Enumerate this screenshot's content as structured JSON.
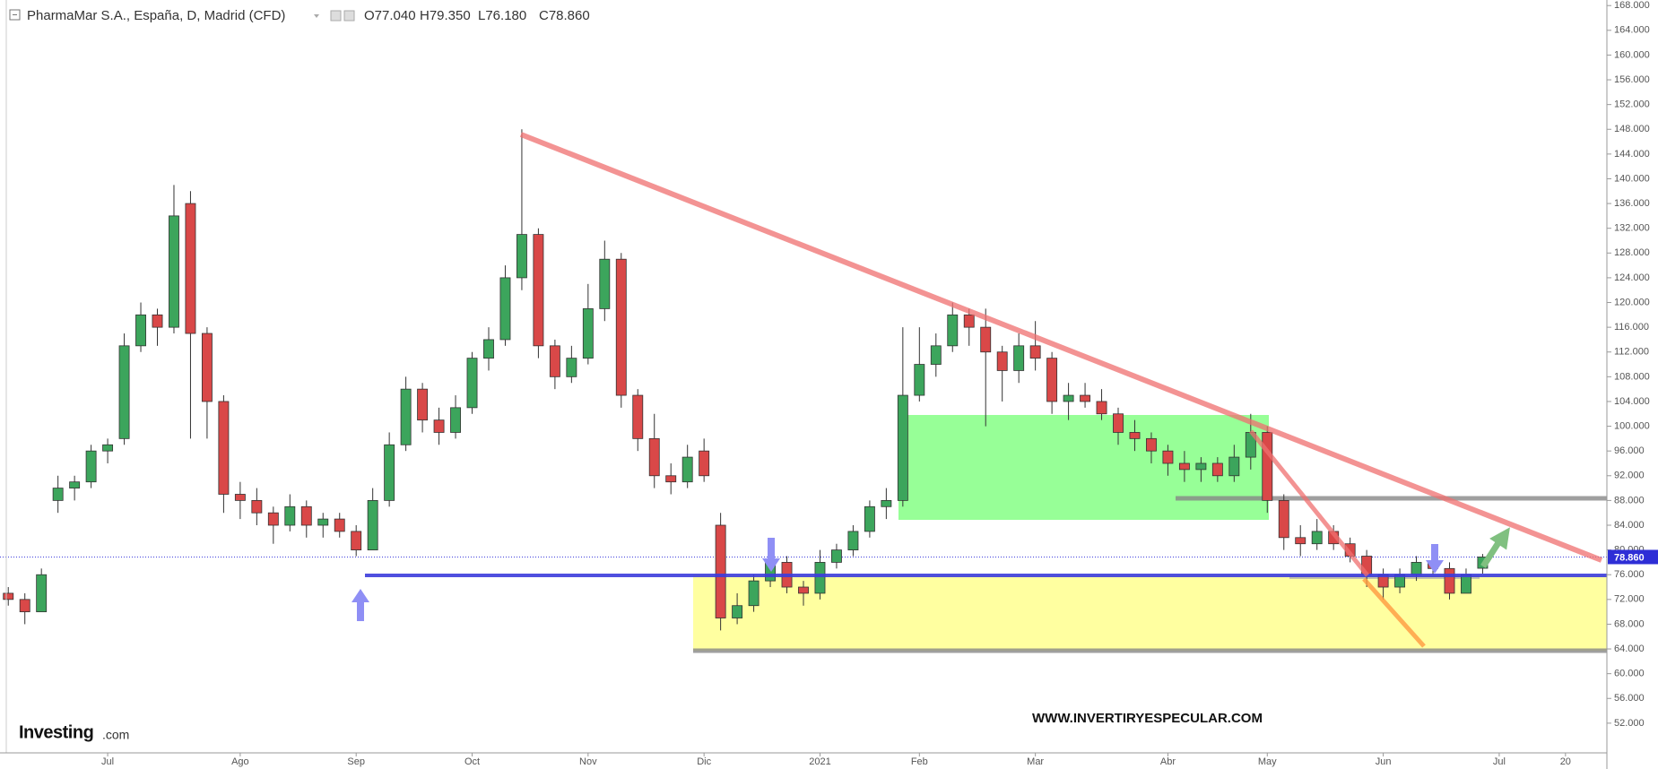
{
  "chart_data": {
    "type": "candlestick",
    "title": "PharmaMar S.A., España, D, Madrid (CFD)",
    "ohlc_labels": [
      "O77.040",
      "H79.350",
      "L76.180",
      "C78.860"
    ],
    "logo": "Investing",
    "logo_suffix": ".com",
    "watermark": "WWW.INVERTIRYESPECULAR.COM",
    "up_color": "#3ca55c",
    "down_color": "#d94848",
    "grid": false,
    "last_price": 78.86,
    "last_price_label": "78.860",
    "categories": [
      null,
      null,
      null,
      null,
      null,
      null,
      "Jul",
      null,
      null,
      null,
      null,
      null,
      null,
      null,
      "Ago",
      null,
      null,
      null,
      null,
      null,
      null,
      "Sep",
      null,
      null,
      null,
      null,
      null,
      null,
      "Oct",
      null,
      null,
      null,
      null,
      null,
      null,
      "Nov",
      null,
      null,
      null,
      null,
      null,
      null,
      "Dic",
      null,
      null,
      null,
      null,
      null,
      null,
      "2021",
      null,
      null,
      null,
      null,
      null,
      "Feb",
      null,
      null,
      null,
      null,
      null,
      null,
      "Mar",
      null,
      null,
      null,
      null,
      null,
      null,
      null,
      "Abr",
      null,
      null,
      null,
      null,
      null,
      "May",
      null,
      null,
      null,
      null,
      null,
      null,
      "Jun",
      null,
      null,
      null,
      null,
      null,
      null,
      "Jul",
      null,
      null,
      null,
      "20",
      null,
      null
    ],
    "open": [
      73,
      72,
      70,
      88,
      90,
      91,
      96,
      98,
      113,
      118,
      116,
      136,
      115,
      104,
      89,
      88,
      86,
      84,
      87,
      84,
      85,
      83,
      80,
      88,
      97,
      106,
      101,
      99,
      103,
      111,
      114,
      124,
      131,
      113,
      108,
      111,
      119,
      127,
      105,
      98,
      92,
      91,
      96,
      84,
      69,
      71,
      75,
      78,
      74,
      73,
      78,
      80,
      83,
      87,
      88,
      105,
      110,
      113,
      118,
      116,
      112,
      109,
      113,
      111,
      104,
      105,
      104,
      102,
      99,
      98,
      96,
      94,
      93,
      94,
      92,
      95,
      99,
      88,
      82,
      81,
      83,
      81,
      79,
      76,
      74,
      76,
      78,
      77,
      73,
      77.04,
      null,
      null,
      null,
      null,
      null,
      null,
      null
    ],
    "high": [
      74,
      73,
      77,
      92,
      92,
      97,
      98,
      115,
      120,
      119,
      139,
      138,
      116,
      105,
      91,
      90,
      87,
      89,
      88,
      86,
      86,
      84,
      90,
      99,
      108,
      107,
      103,
      105,
      112,
      116,
      126,
      148,
      132,
      114,
      113,
      123,
      130,
      128,
      106,
      102,
      94,
      97,
      98,
      86,
      73,
      76,
      80,
      79,
      75,
      80,
      81,
      84,
      88,
      90,
      116,
      116,
      115,
      120,
      119,
      119,
      113,
      115,
      117,
      112,
      107,
      107,
      106,
      103,
      101,
      99,
      97,
      96,
      95,
      95,
      97,
      102,
      100,
      89,
      84,
      85,
      84,
      82,
      80,
      77,
      77,
      79,
      80,
      78,
      77,
      79.35,
      null,
      null,
      null,
      null,
      null,
      null,
      null
    ],
    "low": [
      71,
      68,
      70,
      86,
      88,
      90,
      94,
      97,
      112,
      113,
      115,
      98,
      98,
      86,
      85,
      84,
      81,
      83,
      82,
      82,
      82,
      79,
      80,
      87,
      96,
      99,
      97,
      98,
      102,
      109,
      113,
      122,
      111,
      106,
      107,
      110,
      117,
      103,
      96,
      90,
      89,
      90,
      91,
      67,
      68,
      70,
      74,
      73,
      71,
      72,
      77,
      79,
      82,
      85,
      87,
      104,
      108,
      112,
      113,
      100,
      104,
      107,
      109,
      102,
      101,
      103,
      101,
      97,
      96,
      94,
      92,
      91,
      91,
      91,
      91,
      93,
      86,
      80,
      79,
      80,
      80,
      78,
      74,
      72,
      73,
      75,
      76,
      72,
      73,
      76.18,
      null,
      null,
      null,
      null,
      null,
      null,
      null
    ],
    "close": [
      72,
      70,
      76,
      90,
      91,
      96,
      97,
      113,
      118,
      116,
      134,
      115,
      104,
      89,
      88,
      86,
      84,
      87,
      84,
      85,
      83,
      80,
      88,
      97,
      106,
      101,
      99,
      103,
      111,
      114,
      124,
      131,
      113,
      108,
      111,
      119,
      127,
      105,
      98,
      92,
      91,
      95,
      92,
      69,
      71,
      75,
      78,
      74,
      73,
      78,
      80,
      83,
      87,
      88,
      105,
      110,
      113,
      118,
      116,
      112,
      109,
      113,
      111,
      104,
      105,
      104,
      102,
      99,
      98,
      96,
      94,
      93,
      94,
      92,
      95,
      99,
      88,
      82,
      81,
      83,
      81,
      79,
      76,
      74,
      76,
      78,
      77,
      73,
      76,
      78.86,
      null,
      null,
      null,
      null,
      null,
      null,
      null
    ],
    "ylim": [
      47.2,
      168.9
    ],
    "yticks": [
      {
        "value": 52,
        "label": "52.000"
      },
      {
        "value": 56,
        "label": "56.000"
      },
      {
        "value": 60,
        "label": "60.000"
      },
      {
        "value": 64,
        "label": "64.000"
      },
      {
        "value": 68,
        "label": "68.000"
      },
      {
        "value": 72,
        "label": "72.000"
      },
      {
        "value": 76,
        "label": "76.000"
      },
      {
        "value": 80,
        "label": "80.000"
      },
      {
        "value": 84,
        "label": "84.000"
      },
      {
        "value": 88,
        "label": "88.000"
      },
      {
        "value": 92,
        "label": "92.000"
      },
      {
        "value": 96,
        "label": "96.000"
      },
      {
        "value": 100,
        "label": "100.000"
      },
      {
        "value": 104,
        "label": "104.000"
      },
      {
        "value": 108,
        "label": "108.000"
      },
      {
        "value": 112,
        "label": "112.000"
      },
      {
        "value": 116,
        "label": "116.000"
      },
      {
        "value": 120,
        "label": "120.000"
      },
      {
        "value": 124,
        "label": "124.000"
      },
      {
        "value": 128,
        "label": "128.000"
      },
      {
        "value": 132,
        "label": "132.000"
      },
      {
        "value": 136,
        "label": "136.000"
      },
      {
        "value": 140,
        "label": "140.000"
      },
      {
        "value": 144,
        "label": "144.000"
      },
      {
        "value": 148,
        "label": "148.000"
      },
      {
        "value": 152,
        "label": "152.000"
      },
      {
        "value": 156,
        "label": "156.000"
      },
      {
        "value": 160,
        "label": "160.000"
      },
      {
        "value": 164,
        "label": "164.000"
      },
      {
        "value": 168,
        "label": "168.000"
      }
    ]
  }
}
